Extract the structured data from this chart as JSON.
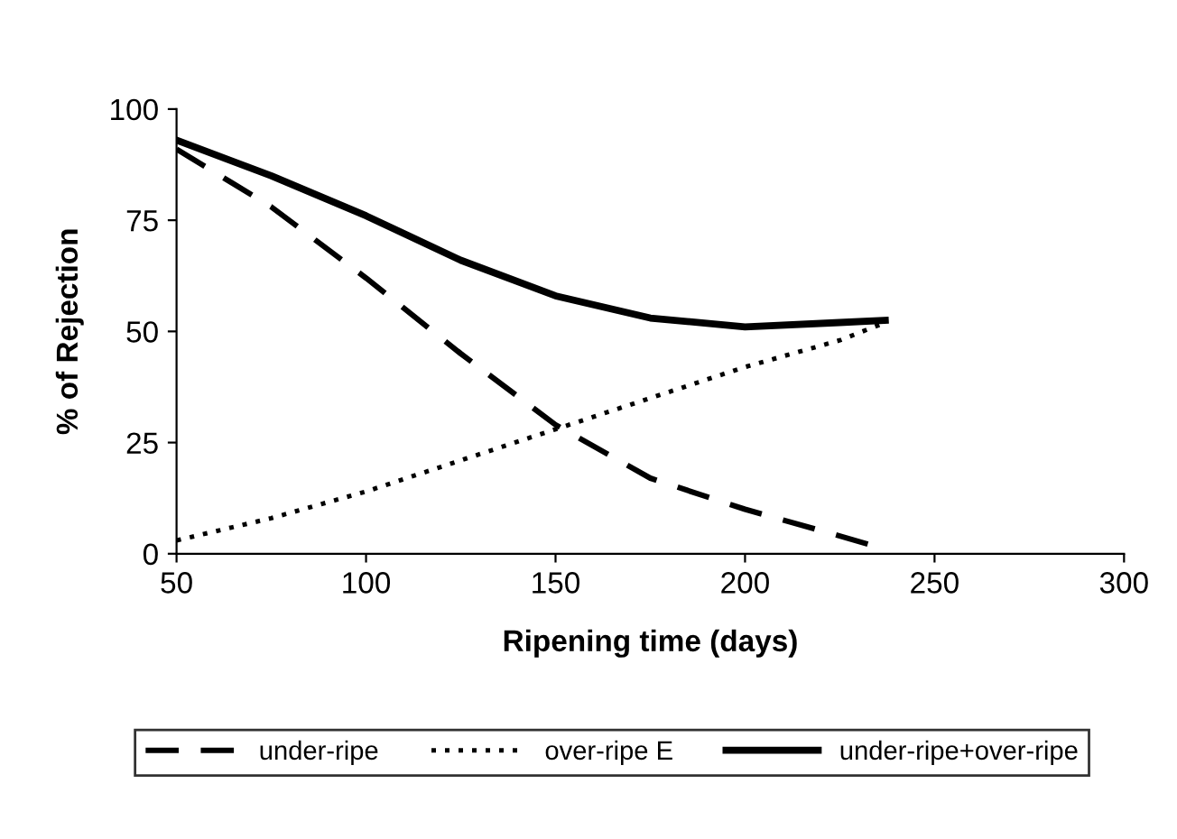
{
  "chart_data": {
    "type": "line",
    "xlabel": "Ripening time (days)",
    "ylabel": "% of Rejection",
    "x": [
      50,
      75,
      100,
      125,
      150,
      175,
      200,
      225,
      237
    ],
    "series": [
      {
        "name": "under-ripe",
        "color": "#000000",
        "line_style": "dashed",
        "values": [
          91,
          78,
          62,
          45,
          29,
          17,
          10,
          4,
          1
        ]
      },
      {
        "name": "over-ripe E",
        "color": "#000000",
        "line_style": "dotted",
        "values": [
          3,
          8,
          14,
          21,
          28,
          35,
          42,
          48,
          52
        ]
      },
      {
        "name": "under-ripe+over-ripe",
        "color": "#000000",
        "line_style": "solid",
        "values": [
          93,
          85,
          76,
          66,
          58,
          53,
          51,
          52,
          52.5
        ]
      }
    ],
    "xlim": [
      50,
      300
    ],
    "xticks": [
      50,
      100,
      150,
      200,
      250,
      300
    ],
    "ylim": [
      0,
      100
    ],
    "yticks": [
      0,
      25,
      50,
      75,
      100
    ],
    "grid": false,
    "legend": "bottom",
    "marker": "none"
  }
}
